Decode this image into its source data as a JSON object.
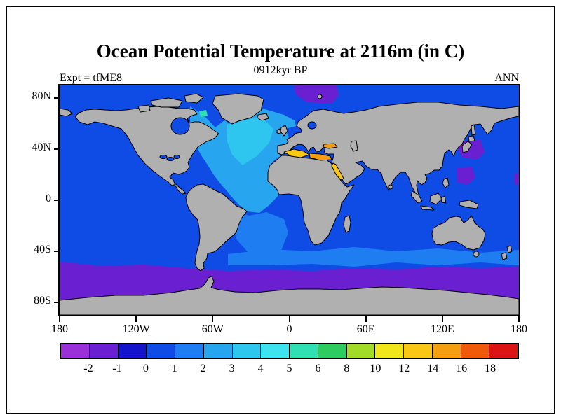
{
  "header": {
    "title": "Ocean Potential Temperature at 2116m (in C)",
    "subtitle": "0912kyr BP",
    "left_label": "Expt = tfME8",
    "right_label": "ANN"
  },
  "chart_data": {
    "type": "heatmap",
    "title": "Ocean Potential Temperature at 2116m (in C)",
    "subtitle": "0912kyr BP",
    "experiment": "tfME8",
    "season": "ANN",
    "depth_m": 2116,
    "units": "C",
    "projection": "equirectangular world map, Atlantic centered",
    "x_axis": {
      "ticks": [
        "180",
        "120W",
        "60W",
        "0",
        "60E",
        "120E",
        "180"
      ],
      "lons": [
        -180,
        -120,
        -60,
        0,
        60,
        120,
        180
      ]
    },
    "y_axis": {
      "ticks": [
        "80N",
        "40N",
        "0",
        "40S",
        "80S"
      ],
      "lats": [
        80,
        40,
        0,
        -40,
        -80
      ]
    },
    "colorbar": {
      "levels": [
        -2,
        -1,
        0,
        1,
        2,
        3,
        4,
        5,
        6,
        8,
        10,
        12,
        14,
        16,
        18
      ],
      "colors": [
        "#9b30d9",
        "#6a1fd0",
        "#1414cd",
        "#0f4ce6",
        "#1f7df2",
        "#28a5ef",
        "#2ec6ef",
        "#3fe3ef",
        "#2ee0b4",
        "#2ecc5f",
        "#a0dc28",
        "#f0e619",
        "#fac814",
        "#f59e0f",
        "#ef5a0a",
        "#dc1414"
      ],
      "orientation": "horizontal"
    },
    "land_color": "#b0b0b0",
    "ocean_features": [
      {
        "region": "Deep ocean background (most basins)",
        "temperature_C": "0 to 1"
      },
      {
        "region": "North Atlantic basin",
        "temperature_C": "2 to 4"
      },
      {
        "region": "Labrador Sea spot",
        "temperature_C": "5 to 6"
      },
      {
        "region": "Mediterranean Sea",
        "temperature_C": "12 to 16"
      },
      {
        "region": "Black Sea",
        "temperature_C": "12 to 16"
      },
      {
        "region": "Red Sea",
        "temperature_C": "12 to 14"
      },
      {
        "region": "Southern Ocean band 50S to 70S",
        "temperature_C": "-2 to -1"
      },
      {
        "region": "Arctic patch north of Europe",
        "temperature_C": "-2 to -1"
      },
      {
        "region": "Northwest Pacific patches near Japan",
        "temperature_C": "-2 to -1"
      },
      {
        "region": "South Atlantic and 40S circumpolar band",
        "temperature_C": "1 to 2"
      }
    ]
  }
}
